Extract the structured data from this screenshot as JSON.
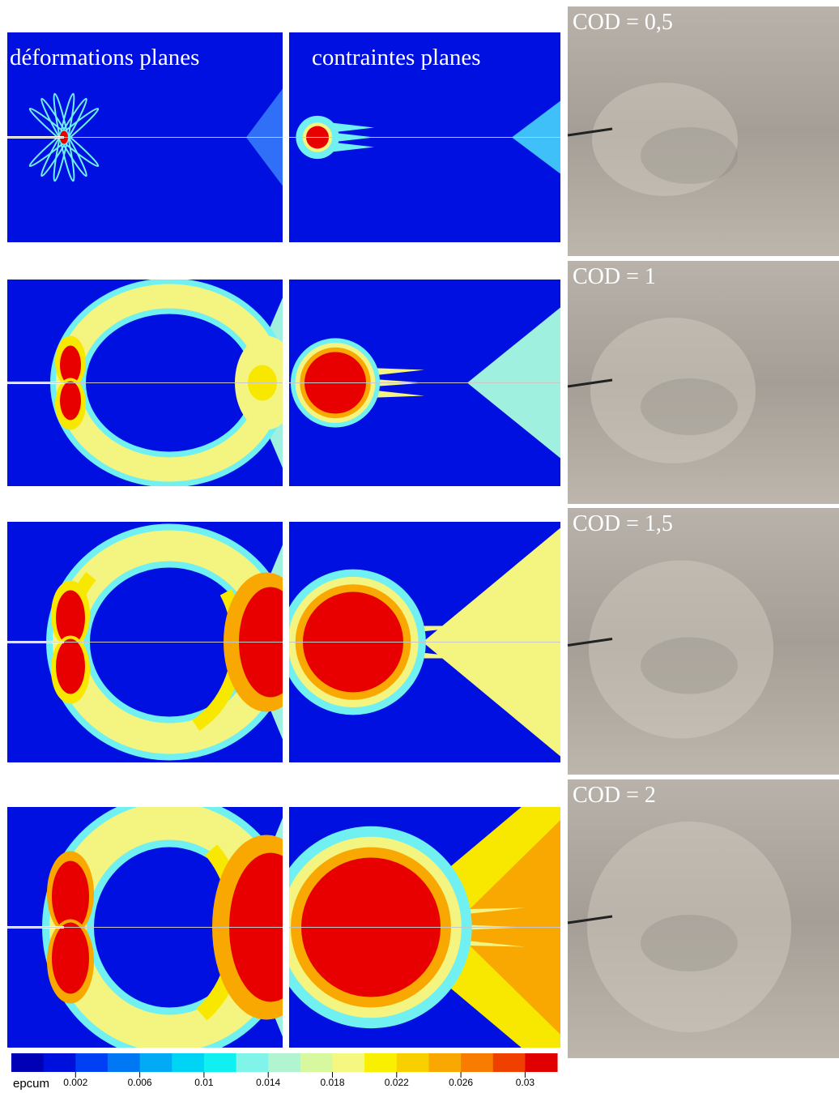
{
  "panels": {
    "column_labels": [
      "déformations planes",
      "contraintes planes"
    ],
    "rows": [
      "COD = 0,5",
      "COD = 1",
      "COD = 1,5",
      "COD = 2"
    ]
  },
  "colorbar": {
    "name": "epcum",
    "colors": [
      "#0000b4",
      "#0010dc",
      "#0040f4",
      "#0078f4",
      "#00aaf4",
      "#00d4f4",
      "#10f0f0",
      "#80f4e8",
      "#b0f4d0",
      "#d8f8a0",
      "#f4f880",
      "#f8f000",
      "#f8d000",
      "#f8a800",
      "#f87c00",
      "#f04000",
      "#e00000"
    ],
    "ticks": [
      "0.002",
      "0.006",
      "0.01",
      "0.014",
      "0.018",
      "0.022",
      "0.026",
      "0.03"
    ]
  }
}
